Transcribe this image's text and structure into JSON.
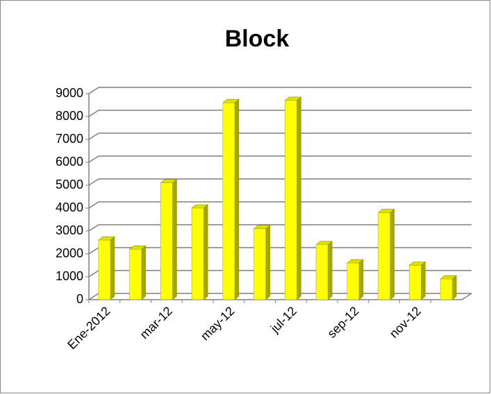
{
  "chart_data": {
    "type": "bar3d",
    "title": "Block",
    "categories": [
      "Ene-2012",
      null,
      "mar-12",
      null,
      "may-12",
      null,
      "jul-12",
      null,
      "sep-12",
      null,
      "nov-12",
      null
    ],
    "values": [
      2600,
      2200,
      5100,
      4000,
      8600,
      3100,
      8700,
      2400,
      1600,
      3800,
      1500,
      900
    ],
    "color": "#ffff00",
    "ylim": [
      0,
      9000
    ],
    "yticks": [
      0,
      1000,
      2000,
      3000,
      4000,
      5000,
      6000,
      7000,
      8000,
      9000
    ],
    "grid": true
  }
}
